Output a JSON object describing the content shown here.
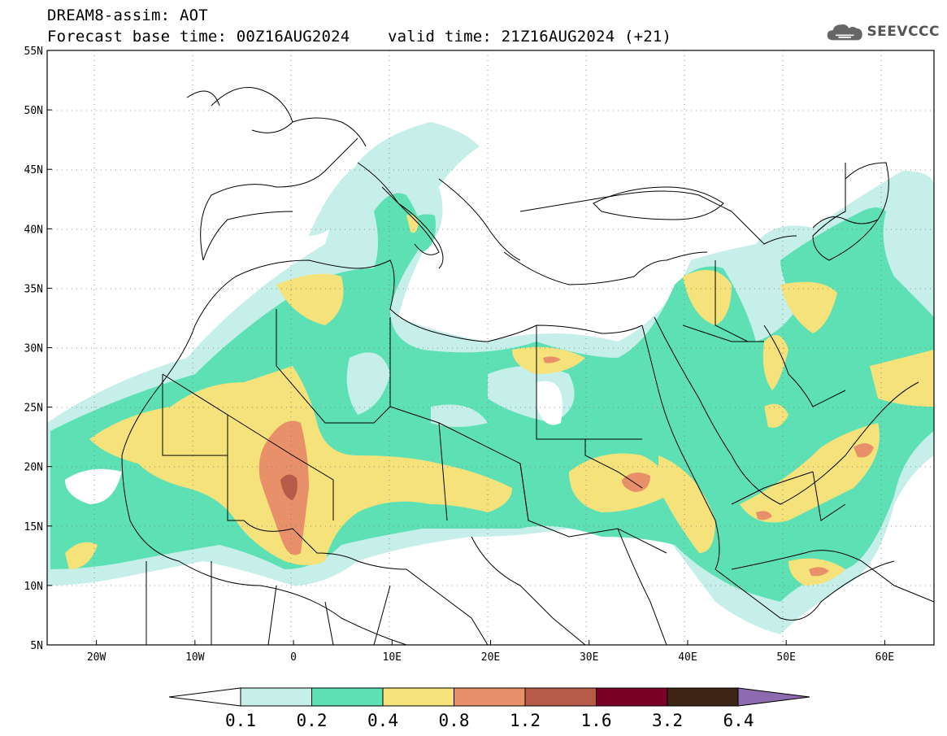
{
  "title": {
    "line1": "DREAM8-assim: AOT",
    "line2": "Forecast base time: 00Z16AUG2024    valid time: 21Z16AUG2024 (+21)"
  },
  "logo": {
    "text": "SEEVCCC",
    "icon": "cloud-icon"
  },
  "map": {
    "lat_labels": [
      "55N",
      "50N",
      "45N",
      "40N",
      "35N",
      "30N",
      "25N",
      "20N",
      "15N",
      "10N",
      "5N"
    ],
    "lon_labels": [
      "20W",
      "10W",
      "0",
      "10E",
      "20E",
      "30E",
      "40E",
      "50E",
      "60E"
    ],
    "lat_range": [
      5,
      55
    ],
    "lon_range": [
      -25,
      65
    ],
    "lat_ticks": [
      55,
      50,
      45,
      40,
      35,
      30,
      25,
      20,
      15,
      10,
      5
    ],
    "lon_ticks": [
      -20,
      -10,
      0,
      10,
      20,
      30,
      40,
      50,
      60
    ],
    "grid": "dotted"
  },
  "colorbar": {
    "labels": [
      "0.1",
      "0.2",
      "0.4",
      "0.8",
      "1.2",
      "1.6",
      "3.2",
      "6.4"
    ],
    "colors": [
      "#c6efea",
      "#5ee0b5",
      "#f6e27a",
      "#e8906a",
      "#b85a48",
      "#7a0028",
      "#3d2414"
    ],
    "under_color": "#ffffff",
    "over_color": "#8e6bb0"
  },
  "palette": {
    "c1": "#c6efea",
    "c2": "#5ee0b5",
    "c3": "#f6e27a",
    "c4": "#e8906a",
    "c5": "#b85a48"
  }
}
